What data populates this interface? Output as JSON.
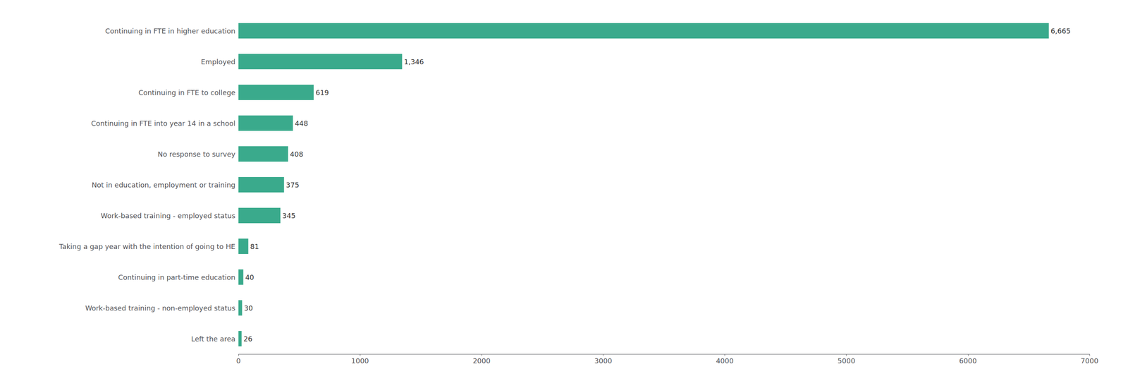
{
  "chart_data": {
    "type": "bar",
    "orientation": "horizontal",
    "categories": [
      "Left the area",
      "Work-based training - non-employed status",
      "Continuing in part-time education",
      "Taking a gap year with the intention of going to HE",
      "Work-based training - employed status",
      "Not in education, employment or training",
      "No response to survey",
      "Continuing in FTE into year 14 in a school",
      "Continuing in FTE to college",
      "Employed",
      "Continuing in FTE in higher education"
    ],
    "values": [
      26,
      30,
      40,
      81,
      345,
      375,
      408,
      448,
      619,
      1346,
      6665
    ],
    "value_labels": [
      "26",
      "30",
      "40",
      "81",
      "345",
      "375",
      "408",
      "448",
      "619",
      "1,346",
      "6,665"
    ],
    "data_labels": true,
    "color": "#3aaa8c",
    "xlim": [
      0,
      7000
    ],
    "xticks": [
      0,
      1000,
      2000,
      3000,
      4000,
      5000,
      6000,
      7000
    ],
    "grid": false
  }
}
